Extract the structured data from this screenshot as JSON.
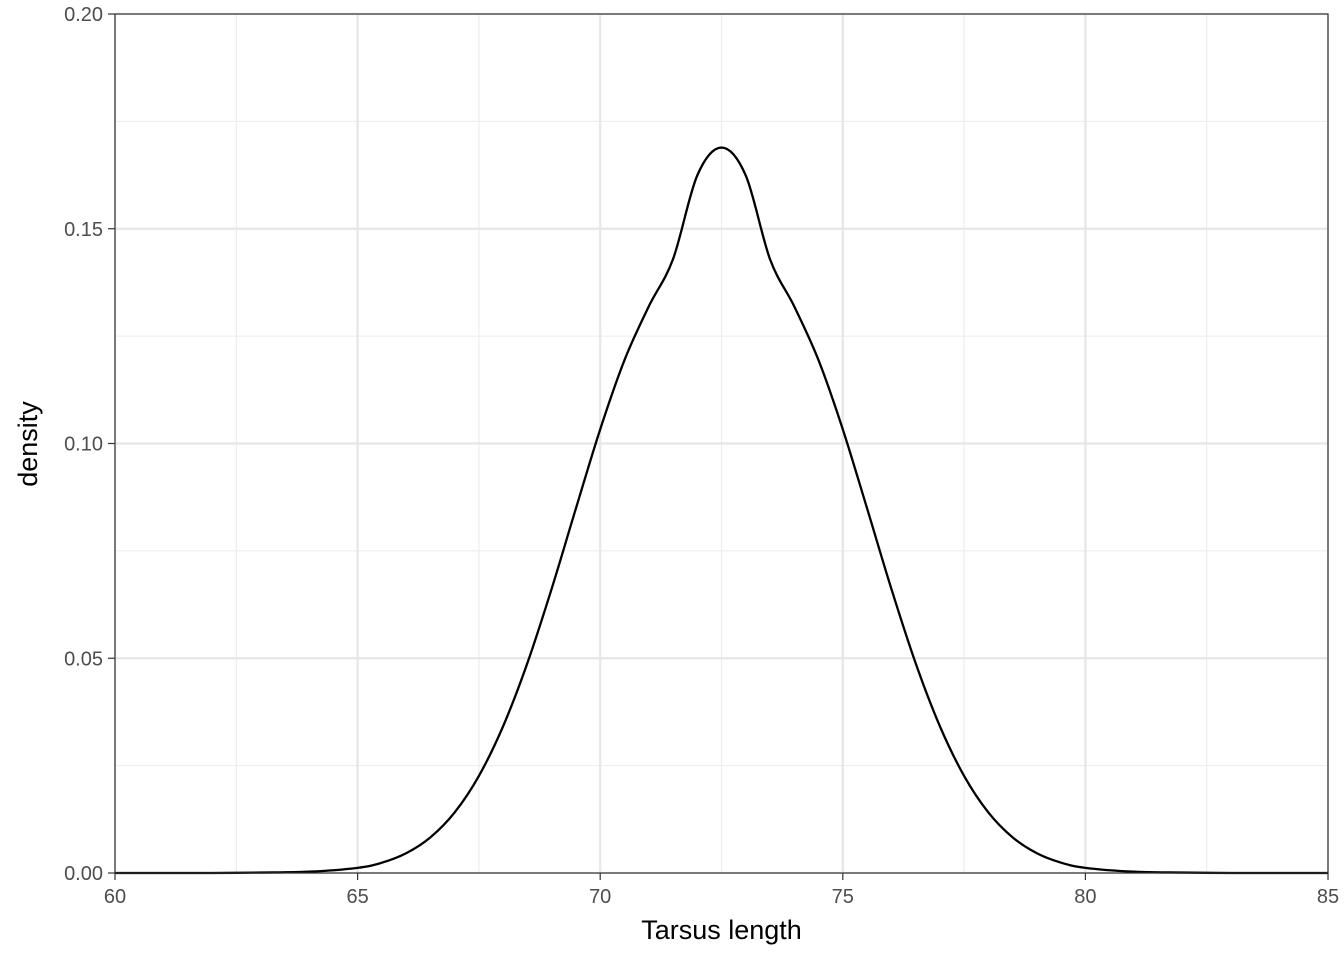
{
  "chart_data": {
    "type": "line",
    "title": "",
    "xlabel": "Tarsus length",
    "ylabel": "density",
    "xlim": [
      60,
      85
    ],
    "ylim": [
      0,
      0.2
    ],
    "x_ticks": [
      60,
      65,
      70,
      75,
      80,
      85
    ],
    "x_tick_labels": [
      "60",
      "65",
      "70",
      "75",
      "80",
      "85"
    ],
    "y_ticks": [
      0,
      0.05,
      0.1,
      0.15,
      0.2
    ],
    "y_tick_labels": [
      "0.00",
      "0.05",
      "0.10",
      "0.15",
      "0.20"
    ],
    "grid": true,
    "legend": "none",
    "series": [
      {
        "color": "#000000",
        "x": [
          60,
          61,
          62,
          63,
          64,
          65,
          65.5,
          66,
          66.5,
          67,
          67.5,
          68,
          68.5,
          69,
          69.5,
          70,
          70.5,
          71,
          71.5,
          72,
          72.5,
          73,
          73.5,
          74,
          74.5,
          75,
          75.5,
          76,
          76.5,
          77,
          77.5,
          78,
          78.5,
          79,
          79.5,
          80,
          81,
          82,
          83,
          84,
          85
        ],
        "y": [
          0.0,
          0.0,
          0.0,
          0.0001,
          0.0003,
          0.0012,
          0.0024,
          0.0046,
          0.0083,
          0.0141,
          0.0226,
          0.0342,
          0.0489,
          0.0662,
          0.0849,
          0.1033,
          0.1194,
          0.1319,
          0.1429,
          0.1624,
          0.1689,
          0.1624,
          0.1429,
          0.1319,
          0.1194,
          0.1033,
          0.0849,
          0.0662,
          0.0489,
          0.0342,
          0.0226,
          0.0141,
          0.0083,
          0.0046,
          0.0024,
          0.0012,
          0.0003,
          0.0001,
          0.0,
          0.0,
          0.0
        ]
      }
    ]
  }
}
